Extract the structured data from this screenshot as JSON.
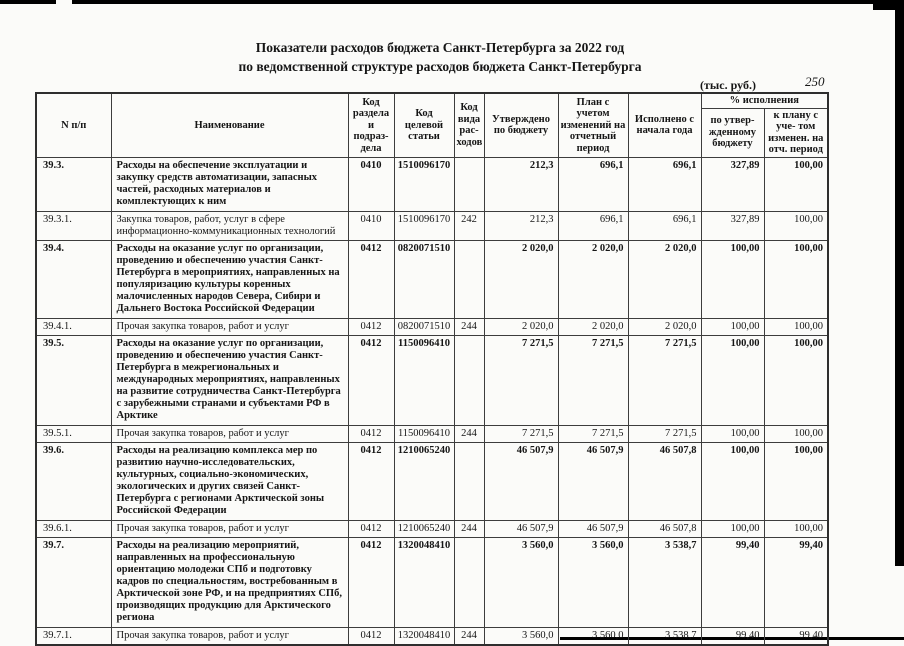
{
  "page": {
    "title_line1": "Показатели расходов бюджета Санкт-Петербурга за 2022 год",
    "title_line2": "по ведомственной структуре расходов бюджета Санкт-Петербурга",
    "units_label": "(тыс. руб.)",
    "page_number": "250"
  },
  "table": {
    "headers": {
      "num": "N п/п",
      "name": "Наименование",
      "section_code": "Код раздела и подраз- дела",
      "target_article_code": "Код целевой статьи",
      "expense_type_code": "Код вида рас- ходов",
      "approved": "Утверждено по бюджету",
      "plan": "План с учетом изменений на отчетный период",
      "executed": "Исполнено с начала года",
      "pct_group": "% исполнения",
      "pct_approved": "по утвер- жденному бюджету",
      "pct_plan": "к плану с уче- том изменен. на отч. период"
    },
    "rows": [
      {
        "num": "39.3.",
        "type": "section",
        "name": "Расходы на  обеспечение эксплуатации и закупку средств автоматизации, запасных частей, расходных материалов и комплектующих к ним",
        "rz": "0410",
        "csr": "1510096170",
        "vr": "",
        "approved": "212,3",
        "plan": "696,1",
        "executed": "696,1",
        "pct_approved": "327,89",
        "pct_plan": "100,00"
      },
      {
        "num": "39.3.1.",
        "type": "detail",
        "name": "Закупка товаров, работ, услуг в сфере информационно-коммуникационных технологий",
        "rz": "0410",
        "csr": "1510096170",
        "vr": "242",
        "approved": "212,3",
        "plan": "696,1",
        "executed": "696,1",
        "pct_approved": "327,89",
        "pct_plan": "100,00"
      },
      {
        "num": "39.4.",
        "type": "section",
        "name": "Расходы на оказание услуг по организации, проведению и обеспечению участия Санкт-Петербурга в мероприятиях, направленных на популяризацию культуры коренных малочисленных народов Севера, Сибири и Дальнего Востока Российской Федерации",
        "rz": "0412",
        "csr": "0820071510",
        "vr": "",
        "approved": "2 020,0",
        "plan": "2 020,0",
        "executed": "2 020,0",
        "pct_approved": "100,00",
        "pct_plan": "100,00"
      },
      {
        "num": "39.4.1.",
        "type": "detail",
        "name": "Прочая закупка товаров, работ и услуг",
        "rz": "0412",
        "csr": "0820071510",
        "vr": "244",
        "approved": "2 020,0",
        "plan": "2 020,0",
        "executed": "2 020,0",
        "pct_approved": "100,00",
        "pct_plan": "100,00"
      },
      {
        "num": "39.5.",
        "type": "section",
        "name": "Расходы на оказание услуг по организации, проведению и обеспечению участия Санкт-Петербурга в межрегиональных и международных мероприятиях, направленных на развитие сотрудничества Санкт-Петербурга с зарубежными странами и субъектами РФ в Арктике",
        "rz": "0412",
        "csr": "1150096410",
        "vr": "",
        "approved": "7 271,5",
        "plan": "7 271,5",
        "executed": "7 271,5",
        "pct_approved": "100,00",
        "pct_plan": "100,00"
      },
      {
        "num": "39.5.1.",
        "type": "detail",
        "name": "Прочая закупка товаров, работ и услуг",
        "rz": "0412",
        "csr": "1150096410",
        "vr": "244",
        "approved": "7 271,5",
        "plan": "7 271,5",
        "executed": "7 271,5",
        "pct_approved": "100,00",
        "pct_plan": "100,00"
      },
      {
        "num": "39.6.",
        "type": "section",
        "name": "Расходы на реализацию комплекса мер по развитию научно-исследовательских, культурных, социально-экономических, экологических и других связей Санкт-Петербурга с регионами Арктической зоны Российской Федерации",
        "rz": "0412",
        "csr": "1210065240",
        "vr": "",
        "approved": "46 507,9",
        "plan": "46 507,9",
        "executed": "46 507,8",
        "pct_approved": "100,00",
        "pct_plan": "100,00"
      },
      {
        "num": "39.6.1.",
        "type": "detail",
        "name": "Прочая закупка товаров, работ и услуг",
        "rz": "0412",
        "csr": "1210065240",
        "vr": "244",
        "approved": "46 507,9",
        "plan": "46 507,9",
        "executed": "46 507,8",
        "pct_approved": "100,00",
        "pct_plan": "100,00"
      },
      {
        "num": "39.7.",
        "type": "section",
        "name": "Расходы на реализацию мероприятий, направленных на профессиональную ориентацию молодежи СПб и подготовку кадров по специальностям, востребованным в Арктической зоне РФ, и на предприятиях СПб, производящих продукцию для Арктического региона",
        "rz": "0412",
        "csr": "1320048410",
        "vr": "",
        "approved": "3 560,0",
        "plan": "3 560,0",
        "executed": "3 538,7",
        "pct_approved": "99,40",
        "pct_plan": "99,40"
      },
      {
        "num": "39.7.1.",
        "type": "detail",
        "name": "Прочая закупка товаров, работ и услуг",
        "rz": "0412",
        "csr": "1320048410",
        "vr": "244",
        "approved": "3 560,0",
        "plan": "3 560,0",
        "executed": "3 538,7",
        "pct_approved": "99,40",
        "pct_plan": "99,40"
      }
    ]
  }
}
